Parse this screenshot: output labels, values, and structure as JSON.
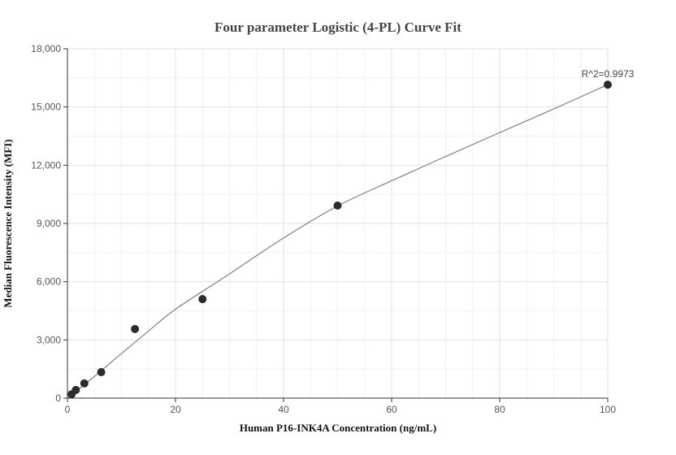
{
  "chart_data": {
    "type": "scatter",
    "title": "Four parameter Logistic (4-PL) Curve Fit",
    "xlabel": "Human P16-INK4A Concentration (ng/mL)",
    "ylabel": "Median Fluorescence Intensity (MFI)",
    "xlim": [
      0,
      100
    ],
    "ylim": [
      0,
      18000
    ],
    "x_ticks": [
      0,
      20,
      40,
      60,
      80,
      100
    ],
    "x_tick_labels": [
      "0",
      "20",
      "40",
      "60",
      "80",
      "100"
    ],
    "y_ticks": [
      0,
      3000,
      6000,
      9000,
      12000,
      15000,
      18000
    ],
    "y_tick_labels": [
      "0",
      "3,000",
      "6,000",
      "9,000",
      "12,000",
      "15,000",
      "18,000"
    ],
    "grid": true,
    "points": [
      {
        "x": 0.78,
        "y": 200
      },
      {
        "x": 1.56,
        "y": 420
      },
      {
        "x": 3.13,
        "y": 760
      },
      {
        "x": 6.25,
        "y": 1340
      },
      {
        "x": 12.5,
        "y": 3560
      },
      {
        "x": 25,
        "y": 5100
      },
      {
        "x": 50,
        "y": 9920
      },
      {
        "x": 100,
        "y": 16150
      }
    ],
    "fit_curve": [
      {
        "x": 0,
        "y": 0
      },
      {
        "x": 5,
        "y": 1120
      },
      {
        "x": 10,
        "y": 2300
      },
      {
        "x": 15,
        "y": 3450
      },
      {
        "x": 20,
        "y": 4580
      },
      {
        "x": 30,
        "y": 6400
      },
      {
        "x": 40,
        "y": 8250
      },
      {
        "x": 50,
        "y": 9900
      },
      {
        "x": 60,
        "y": 11200
      },
      {
        "x": 70,
        "y": 12450
      },
      {
        "x": 80,
        "y": 13680
      },
      {
        "x": 90,
        "y": 14900
      },
      {
        "x": 100,
        "y": 16150
      }
    ],
    "annotation": "R^2=0.9973",
    "colors": {
      "points": "#2b2b2b",
      "curve": "#808080",
      "grid": "#e2e2e2"
    }
  }
}
